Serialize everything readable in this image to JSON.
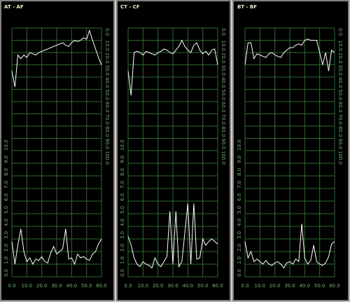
{
  "chart_data": [
    {
      "type": "line",
      "title": "AT - AF",
      "color": "#ffffff",
      "grid": true,
      "x": [
        0,
        2,
        4,
        6,
        8,
        10,
        12,
        14,
        16,
        18,
        20,
        22,
        24,
        26,
        28,
        30,
        32,
        34,
        36,
        38,
        40,
        42,
        44,
        46,
        48,
        50,
        52,
        54,
        56,
        58,
        60
      ],
      "values": [
        35,
        48,
        22,
        25,
        22,
        24,
        20,
        21,
        22,
        20,
        19,
        18,
        17,
        16,
        15,
        14,
        13,
        12,
        14,
        15,
        12,
        10,
        11,
        10,
        8,
        9,
        2,
        10,
        17,
        24,
        30
      ],
      "xlim": [
        0,
        60
      ],
      "xticks": [
        0,
        10,
        20,
        30,
        40,
        50,
        60
      ],
      "ylim": [
        100,
        0
      ],
      "yticks": [
        {
          "value": 0,
          "label": "0.0"
        },
        {
          "value": 10,
          "label": "10.0"
        },
        {
          "value": 20,
          "label": "20.0"
        },
        {
          "value": 30,
          "label": "30.0"
        },
        {
          "value": 40,
          "label": "40.0"
        },
        {
          "value": 50,
          "label": "50.0"
        },
        {
          "value": 60,
          "label": "60.0"
        },
        {
          "value": 70,
          "label": "70.0"
        },
        {
          "value": 80,
          "label": "80.0"
        },
        {
          "value": 90,
          "label": "90.0"
        },
        {
          "value": 100,
          "label": "100.0"
        }
      ]
    },
    {
      "type": "line",
      "color": "#ffffff",
      "grid": true,
      "x": [
        0,
        2,
        4,
        6,
        8,
        10,
        12,
        14,
        16,
        18,
        20,
        22,
        24,
        26,
        28,
        30,
        32,
        34,
        36,
        38,
        40,
        42,
        44,
        46,
        48,
        50,
        52,
        54,
        56,
        58,
        60
      ],
      "values": [
        2.8,
        1.0,
        2.5,
        3.8,
        2.0,
        1.2,
        1.5,
        1.0,
        1.4,
        1.3,
        1.6,
        1.2,
        1.1,
        1.9,
        2.4,
        1.8,
        2.0,
        2.2,
        3.8,
        1.4,
        1.5,
        1.0,
        1.8,
        1.5,
        1.6,
        1.4,
        1.3,
        1.8,
        2.0,
        2.6,
        3.0
      ],
      "xlim": [
        0,
        60
      ],
      "xticks": [
        {
          "value": 0,
          "label": "0.0"
        },
        {
          "value": 10,
          "label": "10.0"
        },
        {
          "value": 20,
          "label": "20.0"
        },
        {
          "value": 30,
          "label": "30.0"
        },
        {
          "value": 40,
          "label": "40.0"
        },
        {
          "value": 50,
          "label": "50.0"
        },
        {
          "value": 60,
          "label": "60.0"
        }
      ],
      "ylim": [
        0,
        10
      ],
      "yticks": [
        {
          "value": 0,
          "label": "0.0"
        },
        {
          "value": 1,
          "label": "1.0"
        },
        {
          "value": 2,
          "label": "2.0"
        },
        {
          "value": 3,
          "label": "3.0"
        },
        {
          "value": 4,
          "label": "4.0"
        },
        {
          "value": 5,
          "label": "5.0"
        },
        {
          "value": 6,
          "label": "6.0"
        },
        {
          "value": 7,
          "label": "7.0"
        },
        {
          "value": 8,
          "label": "8.0"
        },
        {
          "value": 9,
          "label": "9.0"
        },
        {
          "value": 10,
          "label": "10.0"
        }
      ]
    },
    {
      "type": "line",
      "title": "CT - CF",
      "color": "#ffffff",
      "grid": true,
      "x": [
        0,
        2,
        4,
        6,
        8,
        10,
        12,
        14,
        16,
        18,
        20,
        22,
        24,
        26,
        28,
        30,
        32,
        34,
        36,
        38,
        40,
        42,
        44,
        46,
        48,
        50,
        52,
        54,
        56,
        58,
        60
      ],
      "values": [
        35,
        55,
        20,
        19,
        20,
        22,
        19,
        20,
        21,
        22,
        20,
        19,
        17,
        18,
        20,
        21,
        18,
        15,
        10,
        15,
        18,
        20,
        14,
        12,
        18,
        21,
        19,
        22,
        18,
        17,
        30
      ],
      "xlim": [
        0,
        60
      ],
      "xticks": [
        0,
        10,
        20,
        30,
        40,
        50,
        60
      ],
      "ylim": [
        100,
        0
      ],
      "yticks": [
        {
          "value": 0,
          "label": "0.0"
        },
        {
          "value": 10,
          "label": "10.0"
        },
        {
          "value": 20,
          "label": "20.0"
        },
        {
          "value": 30,
          "label": "30.0"
        },
        {
          "value": 40,
          "label": "40.0"
        },
        {
          "value": 50,
          "label": "50.0"
        },
        {
          "value": 60,
          "label": "60.0"
        },
        {
          "value": 70,
          "label": "70.0"
        },
        {
          "value": 80,
          "label": "80.0"
        },
        {
          "value": 90,
          "label": "90.0"
        },
        {
          "value": 100,
          "label": "100.0"
        }
      ]
    },
    {
      "type": "line",
      "color": "#ffffff",
      "grid": true,
      "x": [
        0,
        2,
        4,
        6,
        8,
        10,
        12,
        14,
        16,
        18,
        20,
        22,
        24,
        26,
        28,
        30,
        32,
        34,
        36,
        38,
        40,
        42,
        44,
        46,
        48,
        50,
        52,
        54,
        56,
        58,
        60
      ],
      "values": [
        3.2,
        2.5,
        1.5,
        1.0,
        0.8,
        1.2,
        1.0,
        0.9,
        0.7,
        1.5,
        1.0,
        0.8,
        1.2,
        1.6,
        5.2,
        1.0,
        5.2,
        0.8,
        1.2,
        3.5,
        5.8,
        1.0,
        5.8,
        1.4,
        1.5,
        3.0,
        2.5,
        2.8,
        3.0,
        2.8,
        2.6
      ],
      "xlim": [
        0,
        60
      ],
      "xticks": [
        {
          "value": 0,
          "label": "0.0"
        },
        {
          "value": 10,
          "label": "10.0"
        },
        {
          "value": 20,
          "label": "20.0"
        },
        {
          "value": 30,
          "label": "30.0"
        },
        {
          "value": 40,
          "label": "40.0"
        },
        {
          "value": 50,
          "label": "50.0"
        },
        {
          "value": 60,
          "label": "60.0"
        }
      ],
      "ylim": [
        0,
        10
      ],
      "yticks": [
        {
          "value": 0,
          "label": "0.0"
        },
        {
          "value": 1,
          "label": "1.0"
        },
        {
          "value": 2,
          "label": "2.0"
        },
        {
          "value": 3,
          "label": "3.0"
        },
        {
          "value": 4,
          "label": "4.0"
        },
        {
          "value": 5,
          "label": "5.0"
        },
        {
          "value": 6,
          "label": "6.0"
        },
        {
          "value": 7,
          "label": "7.0"
        },
        {
          "value": 8,
          "label": "8.0"
        },
        {
          "value": 9,
          "label": "9.0"
        },
        {
          "value": 10,
          "label": "10.0"
        }
      ]
    },
    {
      "type": "line",
      "title": "BT - BF",
      "color": "#ffffff",
      "grid": true,
      "x": [
        0,
        2,
        4,
        6,
        8,
        10,
        12,
        14,
        16,
        18,
        20,
        22,
        24,
        26,
        28,
        30,
        32,
        34,
        36,
        38,
        40,
        42,
        44,
        46,
        48,
        50,
        52,
        54,
        56,
        58,
        60
      ],
      "values": [
        30,
        12,
        12,
        25,
        21,
        22,
        23,
        24,
        21,
        20,
        22,
        23,
        24,
        20,
        18,
        16,
        16,
        14,
        13,
        14,
        10,
        9,
        10,
        10,
        10,
        20,
        30,
        20,
        35,
        18,
        20
      ],
      "xlim": [
        0,
        60
      ],
      "xticks": [
        0,
        10,
        20,
        30,
        40,
        50,
        60
      ],
      "ylim": [
        100,
        0
      ],
      "yticks": [
        {
          "value": 0,
          "label": "0.0"
        },
        {
          "value": 10,
          "label": "10.0"
        },
        {
          "value": 20,
          "label": "20.0"
        },
        {
          "value": 30,
          "label": "30.0"
        },
        {
          "value": 40,
          "label": "40.0"
        },
        {
          "value": 50,
          "label": "50.0"
        },
        {
          "value": 60,
          "label": "60.0"
        },
        {
          "value": 70,
          "label": "70.0"
        },
        {
          "value": 80,
          "label": "80.0"
        },
        {
          "value": 90,
          "label": "90.0"
        },
        {
          "value": 100,
          "label": "100.0"
        }
      ]
    },
    {
      "type": "line",
      "color": "#ffffff",
      "grid": true,
      "x": [
        0,
        2,
        4,
        6,
        8,
        10,
        12,
        14,
        16,
        18,
        20,
        22,
        24,
        26,
        28,
        30,
        32,
        34,
        36,
        38,
        40,
        42,
        44,
        46,
        48,
        50,
        52,
        54,
        56,
        58,
        60
      ],
      "values": [
        2.8,
        1.5,
        2.0,
        1.2,
        1.4,
        1.2,
        1.0,
        1.3,
        1.0,
        0.9,
        1.1,
        1.2,
        1.0,
        0.7,
        1.1,
        1.2,
        1.0,
        1.4,
        1.2,
        4.2,
        1.5,
        1.0,
        1.3,
        2.5,
        1.2,
        1.0,
        0.9,
        1.1,
        1.6,
        2.6,
        2.8
      ],
      "xlim": [
        0,
        60
      ],
      "xticks": [
        {
          "value": 0,
          "label": "0.0"
        },
        {
          "value": 10,
          "label": "10.0"
        },
        {
          "value": 20,
          "label": "20.0"
        },
        {
          "value": 30,
          "label": "30.0"
        },
        {
          "value": 40,
          "label": "40.0"
        },
        {
          "value": 50,
          "label": "50.0"
        },
        {
          "value": 60,
          "label": "60.0"
        }
      ],
      "ylim": [
        0,
        10
      ],
      "yticks": [
        {
          "value": 0,
          "label": "0.0"
        },
        {
          "value": 1,
          "label": "1.0"
        },
        {
          "value": 2,
          "label": "2.0"
        },
        {
          "value": 3,
          "label": "3.0"
        },
        {
          "value": 4,
          "label": "4.0"
        },
        {
          "value": 5,
          "label": "5.0"
        },
        {
          "value": 6,
          "label": "6.0"
        },
        {
          "value": 7,
          "label": "7.0"
        },
        {
          "value": 8,
          "label": "8.0"
        },
        {
          "value": 9,
          "label": "9.0"
        },
        {
          "value": 10,
          "label": "10.0"
        }
      ]
    }
  ]
}
